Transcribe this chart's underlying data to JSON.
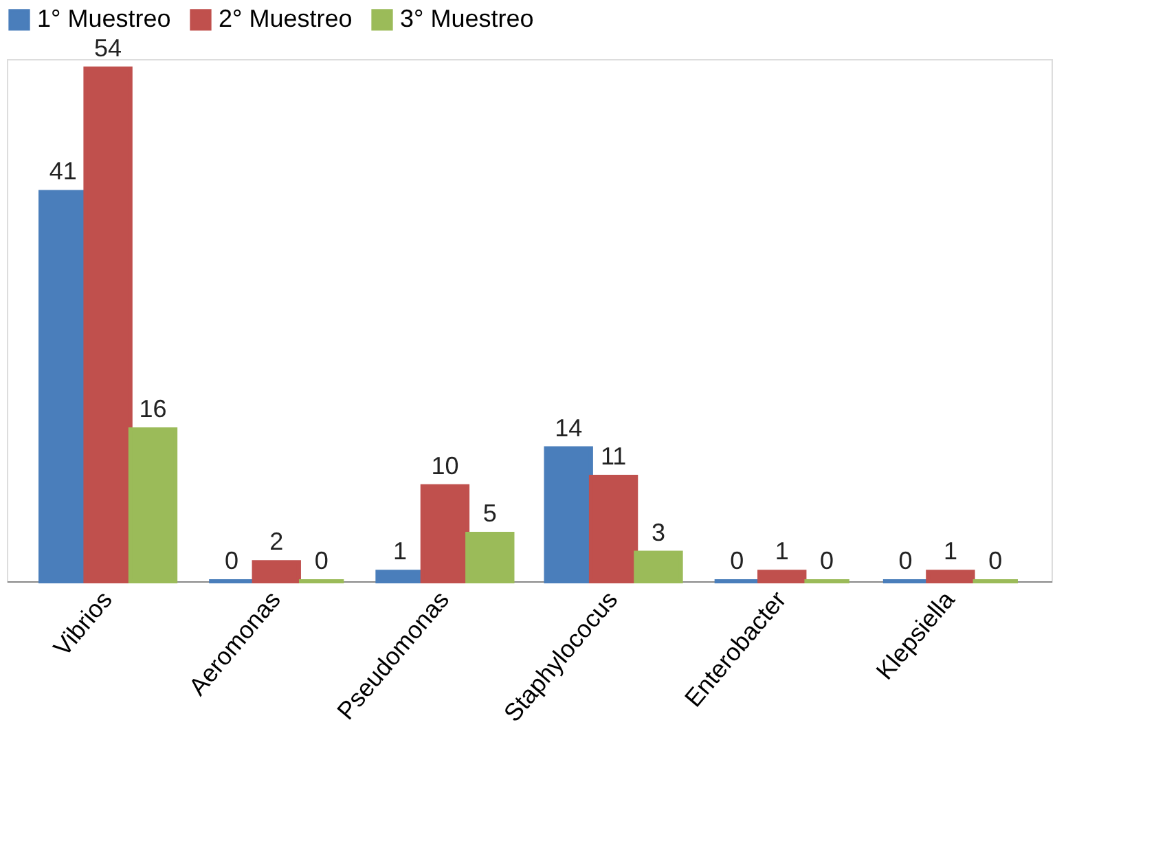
{
  "chart_data": {
    "type": "bar",
    "categories": [
      "Vibrios",
      "Aeromonas",
      "Pseudomonas",
      "Staphylococus",
      "Enterobacter",
      "Klepsiella"
    ],
    "series": [
      {
        "name": "1° Muestreo",
        "color": "#4a7ebb",
        "values": [
          41,
          0,
          1,
          14,
          0,
          0
        ]
      },
      {
        "name": "2° Muestreo",
        "color": "#c0504d",
        "values": [
          54,
          2,
          10,
          11,
          1,
          1
        ]
      },
      {
        "name": "3° Muestreo",
        "color": "#9bbb59",
        "values": [
          16,
          0,
          5,
          3,
          0,
          0
        ]
      }
    ],
    "data_labels": true,
    "grid": false,
    "legend": "top"
  }
}
